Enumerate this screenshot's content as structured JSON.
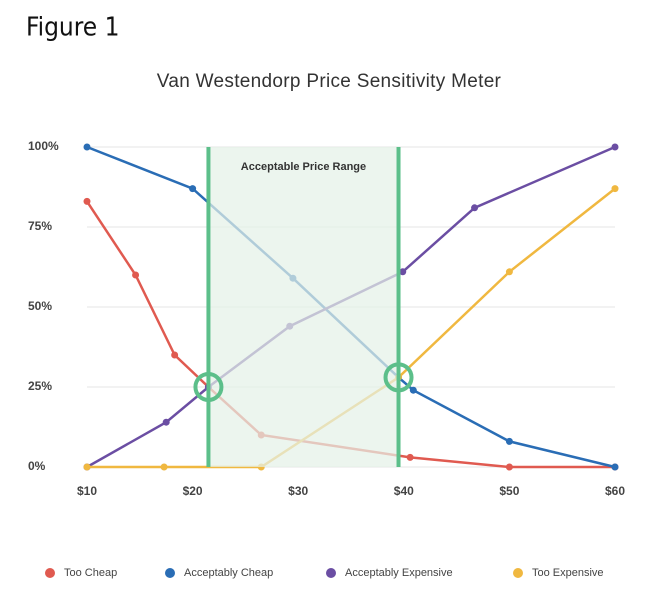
{
  "figure_label": "Figure 1",
  "chart_data": {
    "type": "line",
    "title": "Van Westendorp Price Sensitivity Meter",
    "range_label": "Acceptable Price Range",
    "range": [
      21.5,
      39.5
    ],
    "range_color": "#5cbf8a",
    "intersections": [
      {
        "x": 21.5,
        "y": 25
      },
      {
        "x": 39.5,
        "y": 28
      }
    ],
    "xlim": [
      10,
      60
    ],
    "ylim": [
      0,
      100
    ],
    "xticks": [
      {
        "value": 10,
        "label": "$10"
      },
      {
        "value": 20,
        "label": "$20"
      },
      {
        "value": 30,
        "label": "$30"
      },
      {
        "value": 40,
        "label": "$40"
      },
      {
        "value": 50,
        "label": "$50"
      },
      {
        "value": 60,
        "label": "$60"
      }
    ],
    "yticks": [
      {
        "value": 0,
        "label": "0%"
      },
      {
        "value": 25,
        "label": "25%"
      },
      {
        "value": 50,
        "label": "50%"
      },
      {
        "value": 75,
        "label": "75%"
      },
      {
        "value": 100,
        "label": "100%"
      }
    ],
    "grid": true,
    "legend": "bottom",
    "series": [
      {
        "name": "Too Cheap",
        "color": "#e05a50",
        "x": [
          10,
          14.6,
          18.3,
          21.5,
          26.5,
          40.6,
          50,
          60
        ],
        "values": [
          83,
          60,
          35,
          25,
          10,
          3,
          0,
          0
        ]
      },
      {
        "name": "Acceptably Cheap",
        "color": "#2a6db5",
        "x": [
          10,
          20,
          29.5,
          39.5,
          40.9,
          50,
          60
        ],
        "values": [
          100,
          87,
          59,
          28,
          24,
          8,
          0
        ]
      },
      {
        "name": "Acceptably Expensive",
        "color": "#6b4ea3",
        "x": [
          10,
          17.5,
          21.5,
          29.2,
          39.9,
          46.7,
          60
        ],
        "values": [
          0,
          14,
          25,
          44,
          61,
          81,
          100
        ]
      },
      {
        "name": "Too Expensive",
        "color": "#f0b840",
        "x": [
          10,
          17.3,
          26.5,
          39.5,
          50,
          60
        ],
        "values": [
          0,
          0,
          0,
          28,
          61,
          87
        ]
      }
    ]
  }
}
